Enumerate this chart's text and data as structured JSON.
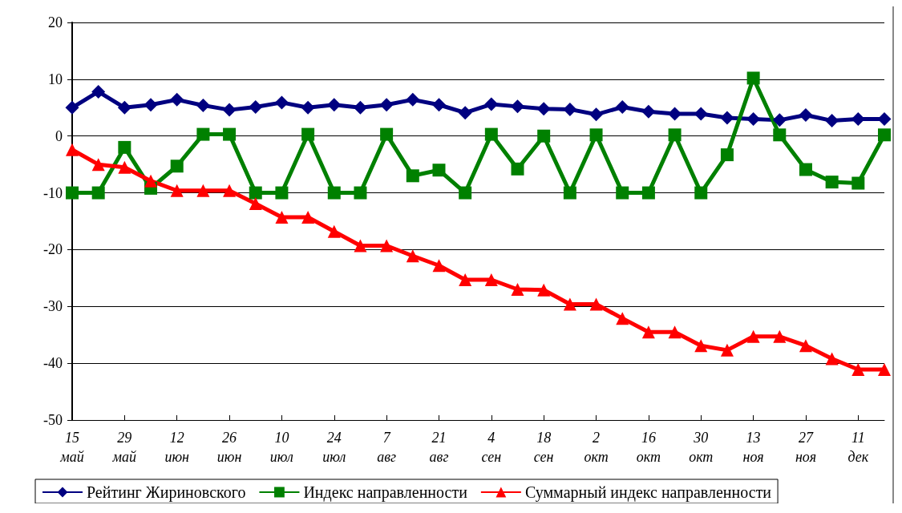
{
  "chart_data": {
    "type": "line",
    "categories": [
      "15 май",
      null,
      "29 май",
      null,
      "12 июн",
      null,
      "26 июн",
      null,
      "10 июл",
      null,
      "24 июл",
      null,
      "7 авг",
      null,
      "21 авг",
      null,
      "4 сен",
      null,
      "18 сен",
      null,
      "2 окт",
      null,
      "16 окт",
      null,
      "30 окт",
      null,
      "13 ноя",
      null,
      "27 ноя",
      null,
      "11 дек",
      null
    ],
    "series": [
      {
        "name": "Рейтинг Жириновского",
        "color": "#000080",
        "marker": "diamond",
        "values": [
          5.0,
          7.8,
          5.0,
          5.5,
          6.4,
          5.4,
          4.6,
          5.1,
          5.9,
          5.0,
          5.5,
          5.0,
          5.5,
          6.4,
          5.5,
          4.1,
          5.6,
          5.2,
          4.8,
          4.7,
          3.8,
          5.1,
          4.3,
          3.9,
          3.9,
          3.2,
          3.0,
          2.8,
          3.7,
          2.7,
          3.0,
          3.0
        ]
      },
      {
        "name": "Индекс направленности",
        "color": "#008000",
        "marker": "square",
        "values": [
          -10,
          -10,
          -2,
          -9.2,
          -5.3,
          0.3,
          0.3,
          -10,
          -10,
          0.3,
          -10,
          -10,
          0.3,
          -7,
          -6,
          -10,
          0.3,
          -5.8,
          0,
          -10,
          0.2,
          -10,
          -10,
          0.2,
          -10,
          -3.3,
          10.2,
          0.2,
          -5.9,
          -8.1,
          -8.3,
          0.2
        ]
      },
      {
        "name": "Суммарный индекс направленности",
        "color": "#ff0000",
        "marker": "triangle",
        "values": [
          -2.4,
          -5,
          -5.5,
          -7.9,
          -9.6,
          -9.6,
          -9.6,
          -11.9,
          -14.3,
          -14.3,
          -16.8,
          -19.3,
          -19.3,
          -21.1,
          -22.8,
          -25.3,
          -25.3,
          -27,
          -27.1,
          -29.6,
          -29.6,
          -32.1,
          -34.5,
          -34.5,
          -36.9,
          -37.7,
          -35.3,
          -35.3,
          -36.9,
          -39.2,
          -41.1,
          -41.1
        ]
      }
    ],
    "ylim": [
      -50,
      20
    ],
    "yticks": [
      -50,
      -40,
      -30,
      -20,
      -10,
      0,
      10,
      20
    ],
    "grid": "y",
    "legend": "bottom",
    "line_style": "solid"
  }
}
